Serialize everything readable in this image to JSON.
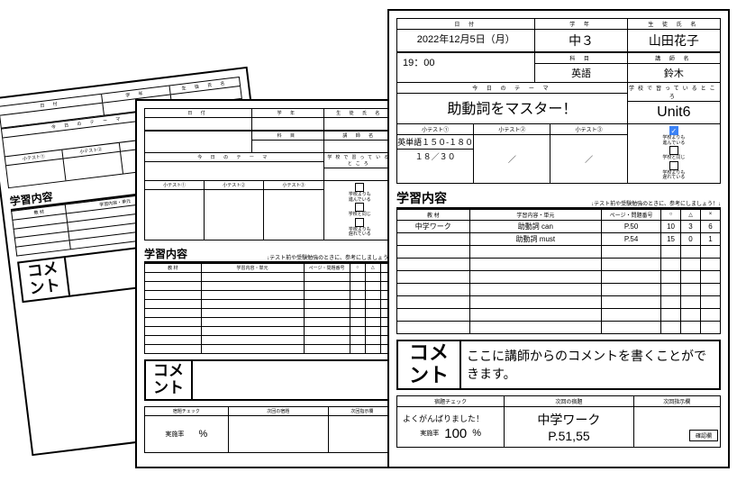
{
  "labels": {
    "date": "日 付",
    "grade": "学 年",
    "student": "生 徒 氏 名",
    "subject": "科 目",
    "teacher": "講 師 名",
    "theme": "今 日 の テ ー マ",
    "school_progress": "学校で習っているところ",
    "test1": "小テスト①",
    "test2": "小テスト②",
    "test3": "小テスト③",
    "check_ahead": "学校よりも\n進んでいる",
    "check_same": "学校と同じ",
    "check_behind": "学校よりも\n遅れている",
    "study_section": "学習内容",
    "study_note": "↓テスト前や受験勉強のときに、参考にしましょう！↓",
    "col_material": "教 材",
    "col_unit": "学習内容・単元",
    "col_page": "ページ・問題番号",
    "col_o": "○",
    "col_tri": "△",
    "col_x": "×",
    "comment": "コメ\nント",
    "hw_check": "宿題チェック",
    "next_hw": "次回の宿題",
    "next_notice": "次回指示欄",
    "rate": "実施率",
    "percent": "%",
    "confirm": "確認欄"
  },
  "main": {
    "date": "2022年12月5日（月）",
    "time": "19：00",
    "grade": "中３",
    "student": "山田花子",
    "subject": "英語",
    "teacher": "鈴木",
    "theme": "助動詞をマスター！",
    "school_unit": "Unit6",
    "test1_line1": "英単語１５０-１８０",
    "test1_line2": "１８／３０",
    "test2": "／",
    "test3": "／",
    "progress_checked": 0,
    "study_rows": [
      {
        "material": "中学ワーク",
        "unit": "助動詞 can",
        "page": "P.50",
        "o": "10",
        "t": "3",
        "x": "6"
      },
      {
        "material": "",
        "unit": "助動詞 must",
        "page": "P.54",
        "o": "15",
        "t": "0",
        "x": "1"
      }
    ],
    "empty_rows": 7,
    "comment_text": "ここに講師からのコメントを書くことができます。",
    "hw_check": "よくがんばりました！",
    "rate_value": "100",
    "next_hw_line1": "中学ワーク",
    "next_hw_line2": "P.51,55"
  },
  "colors": {
    "check_blue": "#3b82f6"
  }
}
